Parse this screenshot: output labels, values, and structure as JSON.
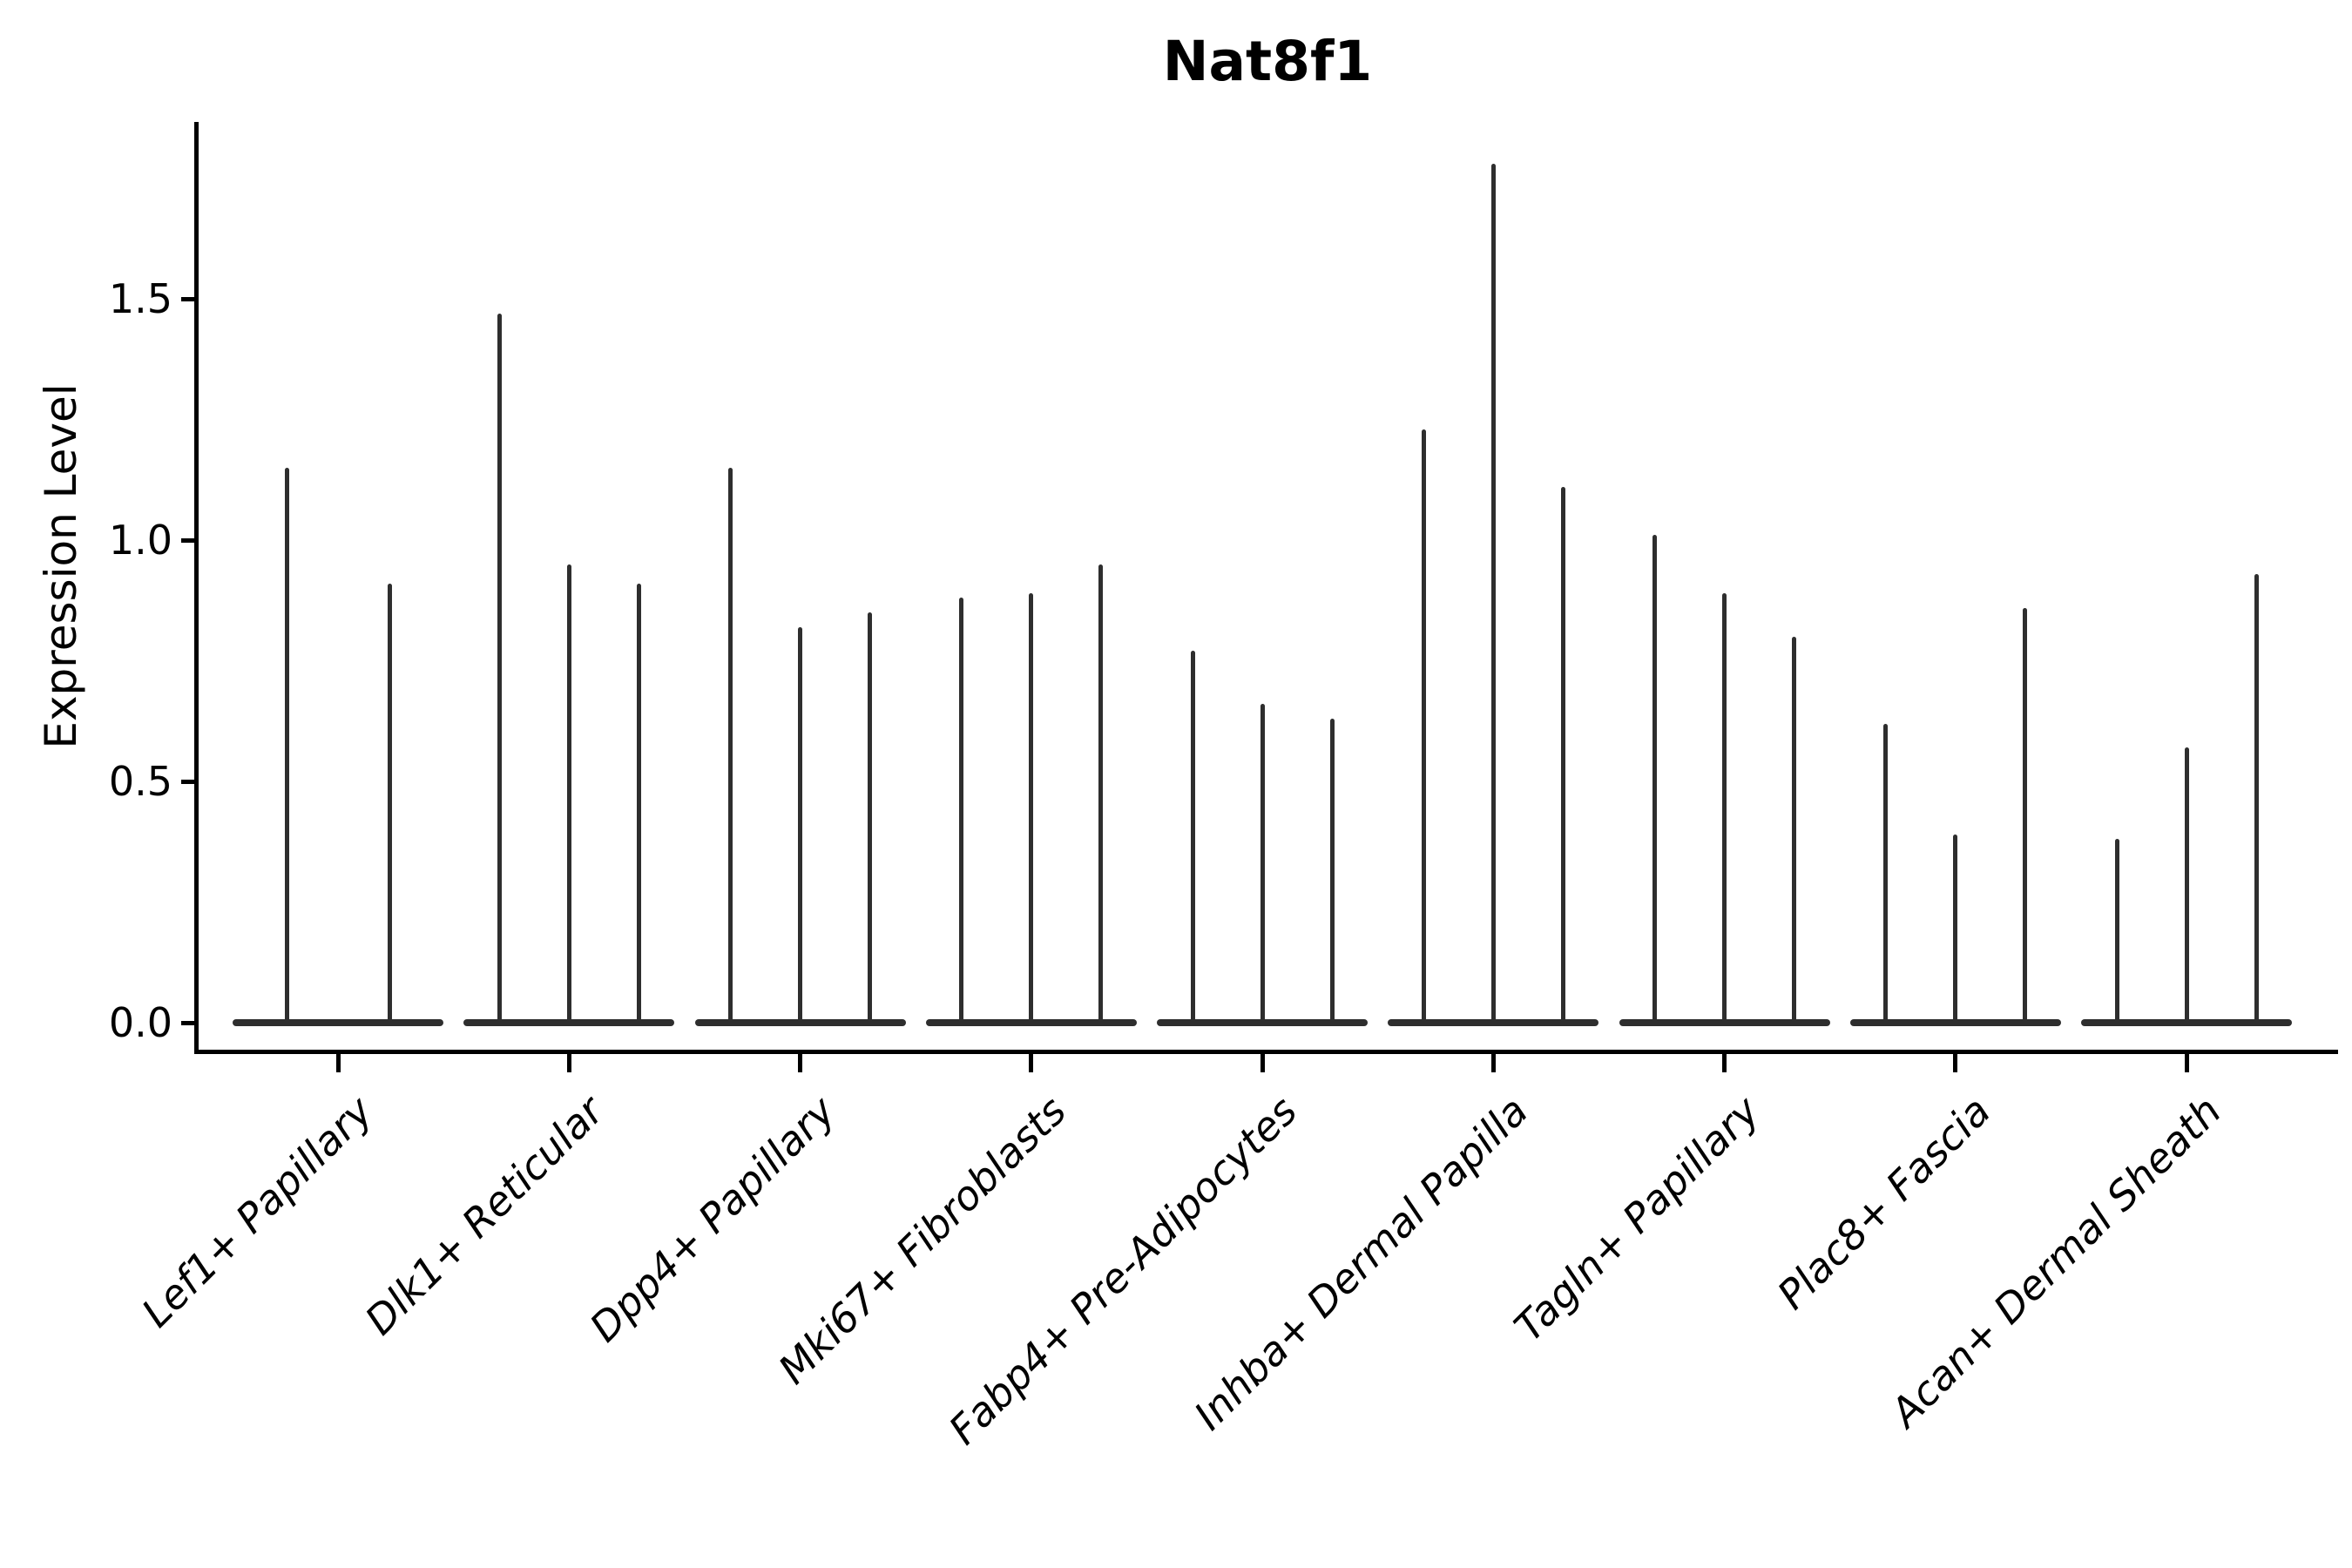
{
  "chart_data": {
    "type": "violin",
    "title": "Nat8f1",
    "ylabel": "Expression Level",
    "xlabel": "",
    "ytick_labels": [
      "0.0",
      "0.5",
      "1.0",
      "1.5"
    ],
    "ytick_values": [
      0.0,
      0.5,
      1.0,
      1.5
    ],
    "ylim": [
      -0.06,
      1.87
    ],
    "grid": false,
    "legend": "none",
    "x_label_rotation_deg": 45,
    "x_label_style": "italic",
    "categories": [
      "Lef1+ Papillary",
      "Dlk1+ Reticular",
      "Dpp4+ Papillary",
      "Mki67+ Fibroblasts",
      "Fabp4+ Pre-Adipocytes",
      "Inhba+ Dermal Papilla",
      "Tagln+ Papillary",
      "Plac8+ Fascia",
      "Acan+ Dermal Sheath"
    ],
    "groups": [
      {
        "category": "Lef1+ Papillary",
        "violin_max_values": [
          1.15,
          0.91
        ]
      },
      {
        "category": "Dlk1+ Reticular",
        "violin_max_values": [
          1.47,
          0.95,
          0.91
        ]
      },
      {
        "category": "Dpp4+ Papillary",
        "violin_max_values": [
          1.15,
          0.82,
          0.85
        ]
      },
      {
        "category": "Mki67+ Fibroblasts",
        "violin_max_values": [
          0.88,
          0.89,
          0.95
        ]
      },
      {
        "category": "Fabp4+ Pre-Adipocytes",
        "violin_max_values": [
          0.77,
          0.66,
          0.63
        ]
      },
      {
        "category": "Inhba+ Dermal Papilla",
        "violin_max_values": [
          1.23,
          1.78,
          1.11
        ]
      },
      {
        "category": "Tagln+ Papillary",
        "violin_max_values": [
          1.01,
          0.89,
          0.8
        ]
      },
      {
        "category": "Plac8+ Fascia",
        "violin_max_values": [
          0.62,
          0.39,
          0.86
        ]
      },
      {
        "category": "Acan+ Dermal Sheath",
        "violin_max_values": [
          0.38,
          0.57,
          0.93
        ]
      }
    ],
    "violin_body_value": 0.0,
    "colors": {
      "violin": "#2e2e2e",
      "axis": "#000000",
      "background": "#ffffff",
      "text": "#000000"
    }
  }
}
